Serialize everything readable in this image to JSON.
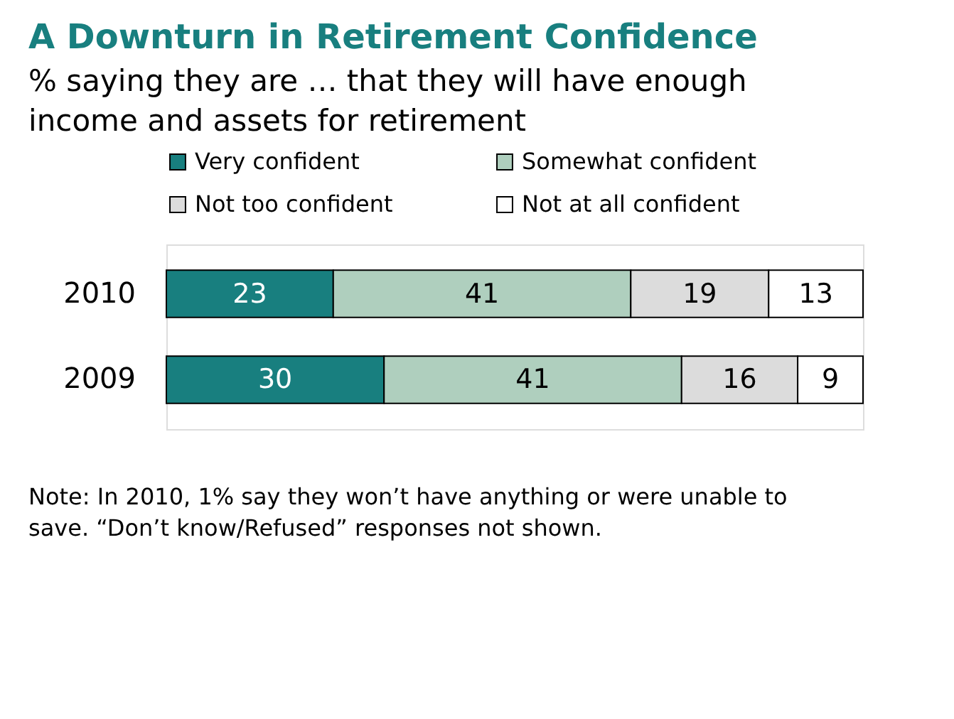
{
  "chart_data": {
    "type": "bar",
    "orientation": "horizontal",
    "stacked": true,
    "data_labels": true,
    "legend": "top",
    "title": "A Downturn in Retirement Confidence",
    "subtitle": "% saying they are … that they will have enough income and assets for retirement",
    "categories": [
      "2010",
      "2009"
    ],
    "series": [
      {
        "name": "Very confident",
        "color": "#187f7f",
        "values": [
          23,
          30
        ]
      },
      {
        "name": "Somewhat confident",
        "color": "#afcfbe",
        "values": [
          41,
          41
        ]
      },
      {
        "name": "Not too confident",
        "color": "#dcdcdc",
        "values": [
          19,
          16
        ]
      },
      {
        "name": "Not at all confident",
        "color": "#ffffff",
        "values": [
          13,
          9
        ]
      }
    ],
    "annotations": [
      "Note: In 2010, 1% say they won’t have anything or were unable to save. “Don’t know/Refused” responses not shown."
    ]
  }
}
